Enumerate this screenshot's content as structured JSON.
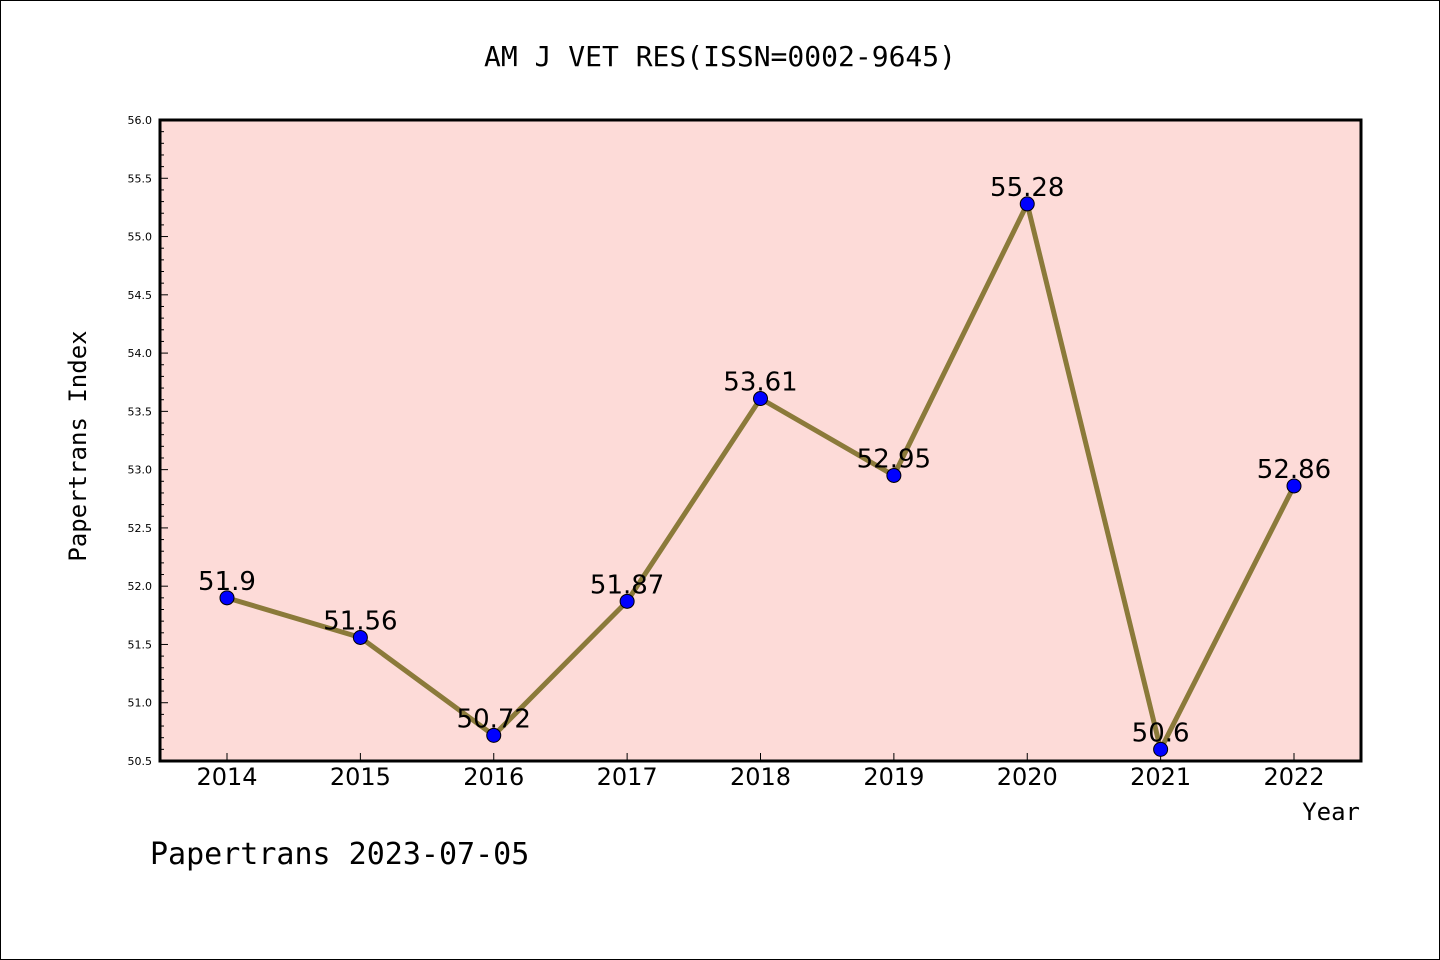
{
  "chart_data": {
    "type": "line",
    "title": "AM J VET RES(ISSN=0002-9645)",
    "xlabel": "Year",
    "ylabel": "Papertrans Index",
    "categories": [
      "2014",
      "2015",
      "2016",
      "2017",
      "2018",
      "2019",
      "2020",
      "2021",
      "2022"
    ],
    "series": [
      {
        "values": [
          51.9,
          51.56,
          50.72,
          51.87,
          53.61,
          52.95,
          55.28,
          50.6,
          52.86
        ]
      }
    ],
    "data_labels": [
      "51.9",
      "51.56",
      "50.72",
      "51.87",
      "53.61",
      "52.95",
      "55.28",
      "50.6",
      "52.86"
    ],
    "ylim": [
      50.5,
      56.0
    ],
    "yticks": [
      "50.5",
      "51.0",
      "51.5",
      "52.0",
      "52.5",
      "53.0",
      "53.5",
      "54.0",
      "54.5",
      "55.0",
      "55.5",
      "56.0"
    ],
    "grid": false,
    "legend": "none",
    "colors": {
      "plot_background": "#fddbd8",
      "line": "#8b7a3a",
      "marker": "#0000ff"
    }
  },
  "footer": "Papertrans 2023-07-05"
}
